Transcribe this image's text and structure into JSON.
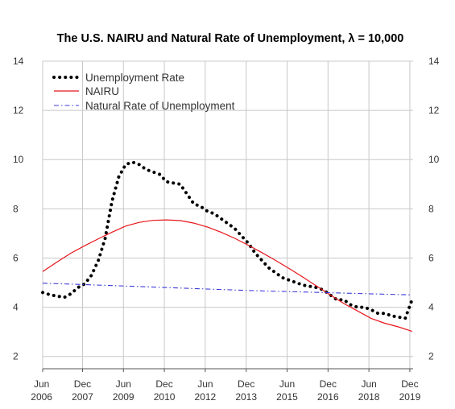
{
  "chart_data": {
    "type": "line",
    "title": "The U.S. NAIRU and Natural Rate of Unemployment, λ = 10,000",
    "xlabel": "",
    "ylabel": "",
    "xlim": [
      2006.46,
      2020.04
    ],
    "ylim": [
      1.5,
      14
    ],
    "y_ticks": [
      2,
      4,
      6,
      8,
      10,
      12,
      14
    ],
    "x_ticks": [
      {
        "x": 2006.42,
        "month": "Jun",
        "year": "2006"
      },
      {
        "x": 2007.92,
        "month": "Dec",
        "year": "2007"
      },
      {
        "x": 2009.42,
        "month": "Jun",
        "year": "2009"
      },
      {
        "x": 2010.92,
        "month": "Dec",
        "year": "2010"
      },
      {
        "x": 2012.42,
        "month": "Jun",
        "year": "2012"
      },
      {
        "x": 2013.92,
        "month": "Dec",
        "year": "2013"
      },
      {
        "x": 2015.42,
        "month": "Jun",
        "year": "2015"
      },
      {
        "x": 2016.92,
        "month": "Dec",
        "year": "2016"
      },
      {
        "x": 2018.42,
        "month": "Jun",
        "year": "2018"
      },
      {
        "x": 2019.92,
        "month": "Dec",
        "year": "2019"
      }
    ],
    "grid": true,
    "legend_position": "top-left",
    "series": [
      {
        "name": "Unemployment Rate",
        "color": "#000000",
        "style": "dotted",
        "x": [
          2006.46,
          2006.75,
          2007.0,
          2007.25,
          2007.5,
          2007.75,
          2008.0,
          2008.25,
          2008.5,
          2008.75,
          2009.0,
          2009.25,
          2009.5,
          2009.75,
          2010.0,
          2010.25,
          2010.5,
          2010.75,
          2011.0,
          2011.25,
          2011.5,
          2011.75,
          2012.0,
          2012.25,
          2012.5,
          2012.75,
          2013.0,
          2013.25,
          2013.5,
          2013.75,
          2014.0,
          2014.25,
          2014.5,
          2014.75,
          2015.0,
          2015.25,
          2015.5,
          2015.75,
          2016.0,
          2016.25,
          2016.5,
          2016.75,
          2017.0,
          2017.25,
          2017.5,
          2017.75,
          2018.0,
          2018.25,
          2018.5,
          2018.75,
          2019.0,
          2019.25,
          2019.5,
          2019.75,
          2020.0
        ],
        "values": [
          4.6,
          4.5,
          4.45,
          4.4,
          4.55,
          4.8,
          4.95,
          5.3,
          5.9,
          6.8,
          8.3,
          9.3,
          9.8,
          9.9,
          9.8,
          9.6,
          9.5,
          9.4,
          9.1,
          9.05,
          9.0,
          8.6,
          8.2,
          8.1,
          7.9,
          7.8,
          7.6,
          7.4,
          7.2,
          6.9,
          6.6,
          6.2,
          5.9,
          5.6,
          5.4,
          5.2,
          5.1,
          5.0,
          4.9,
          4.85,
          4.8,
          4.7,
          4.5,
          4.3,
          4.3,
          4.1,
          4.0,
          4.0,
          3.9,
          3.75,
          3.75,
          3.65,
          3.6,
          3.55,
          4.3
        ]
      },
      {
        "name": "NAIRU",
        "color": "#e8151b",
        "style": "solid",
        "x": [
          2006.46,
          2007.0,
          2007.5,
          2008.0,
          2008.5,
          2009.0,
          2009.5,
          2010.0,
          2010.5,
          2011.0,
          2011.5,
          2012.0,
          2012.5,
          2013.0,
          2013.5,
          2014.0,
          2014.5,
          2015.0,
          2015.5,
          2016.0,
          2016.5,
          2017.0,
          2017.5,
          2018.0,
          2018.5,
          2019.0,
          2019.5,
          2020.0
        ],
        "values": [
          5.45,
          5.85,
          6.2,
          6.5,
          6.78,
          7.05,
          7.3,
          7.45,
          7.53,
          7.55,
          7.52,
          7.42,
          7.26,
          7.05,
          6.8,
          6.52,
          6.22,
          5.9,
          5.57,
          5.22,
          4.86,
          4.5,
          4.15,
          3.85,
          3.55,
          3.35,
          3.2,
          3.02
        ]
      },
      {
        "name": "Natural Rate of Unemployment",
        "color": "#3b3bdb",
        "style": "dashdot",
        "x": [
          2006.46,
          2008.0,
          2010.0,
          2012.0,
          2014.0,
          2016.0,
          2018.0,
          2020.0
        ],
        "values": [
          4.98,
          4.92,
          4.84,
          4.76,
          4.68,
          4.62,
          4.56,
          4.5
        ]
      }
    ]
  }
}
